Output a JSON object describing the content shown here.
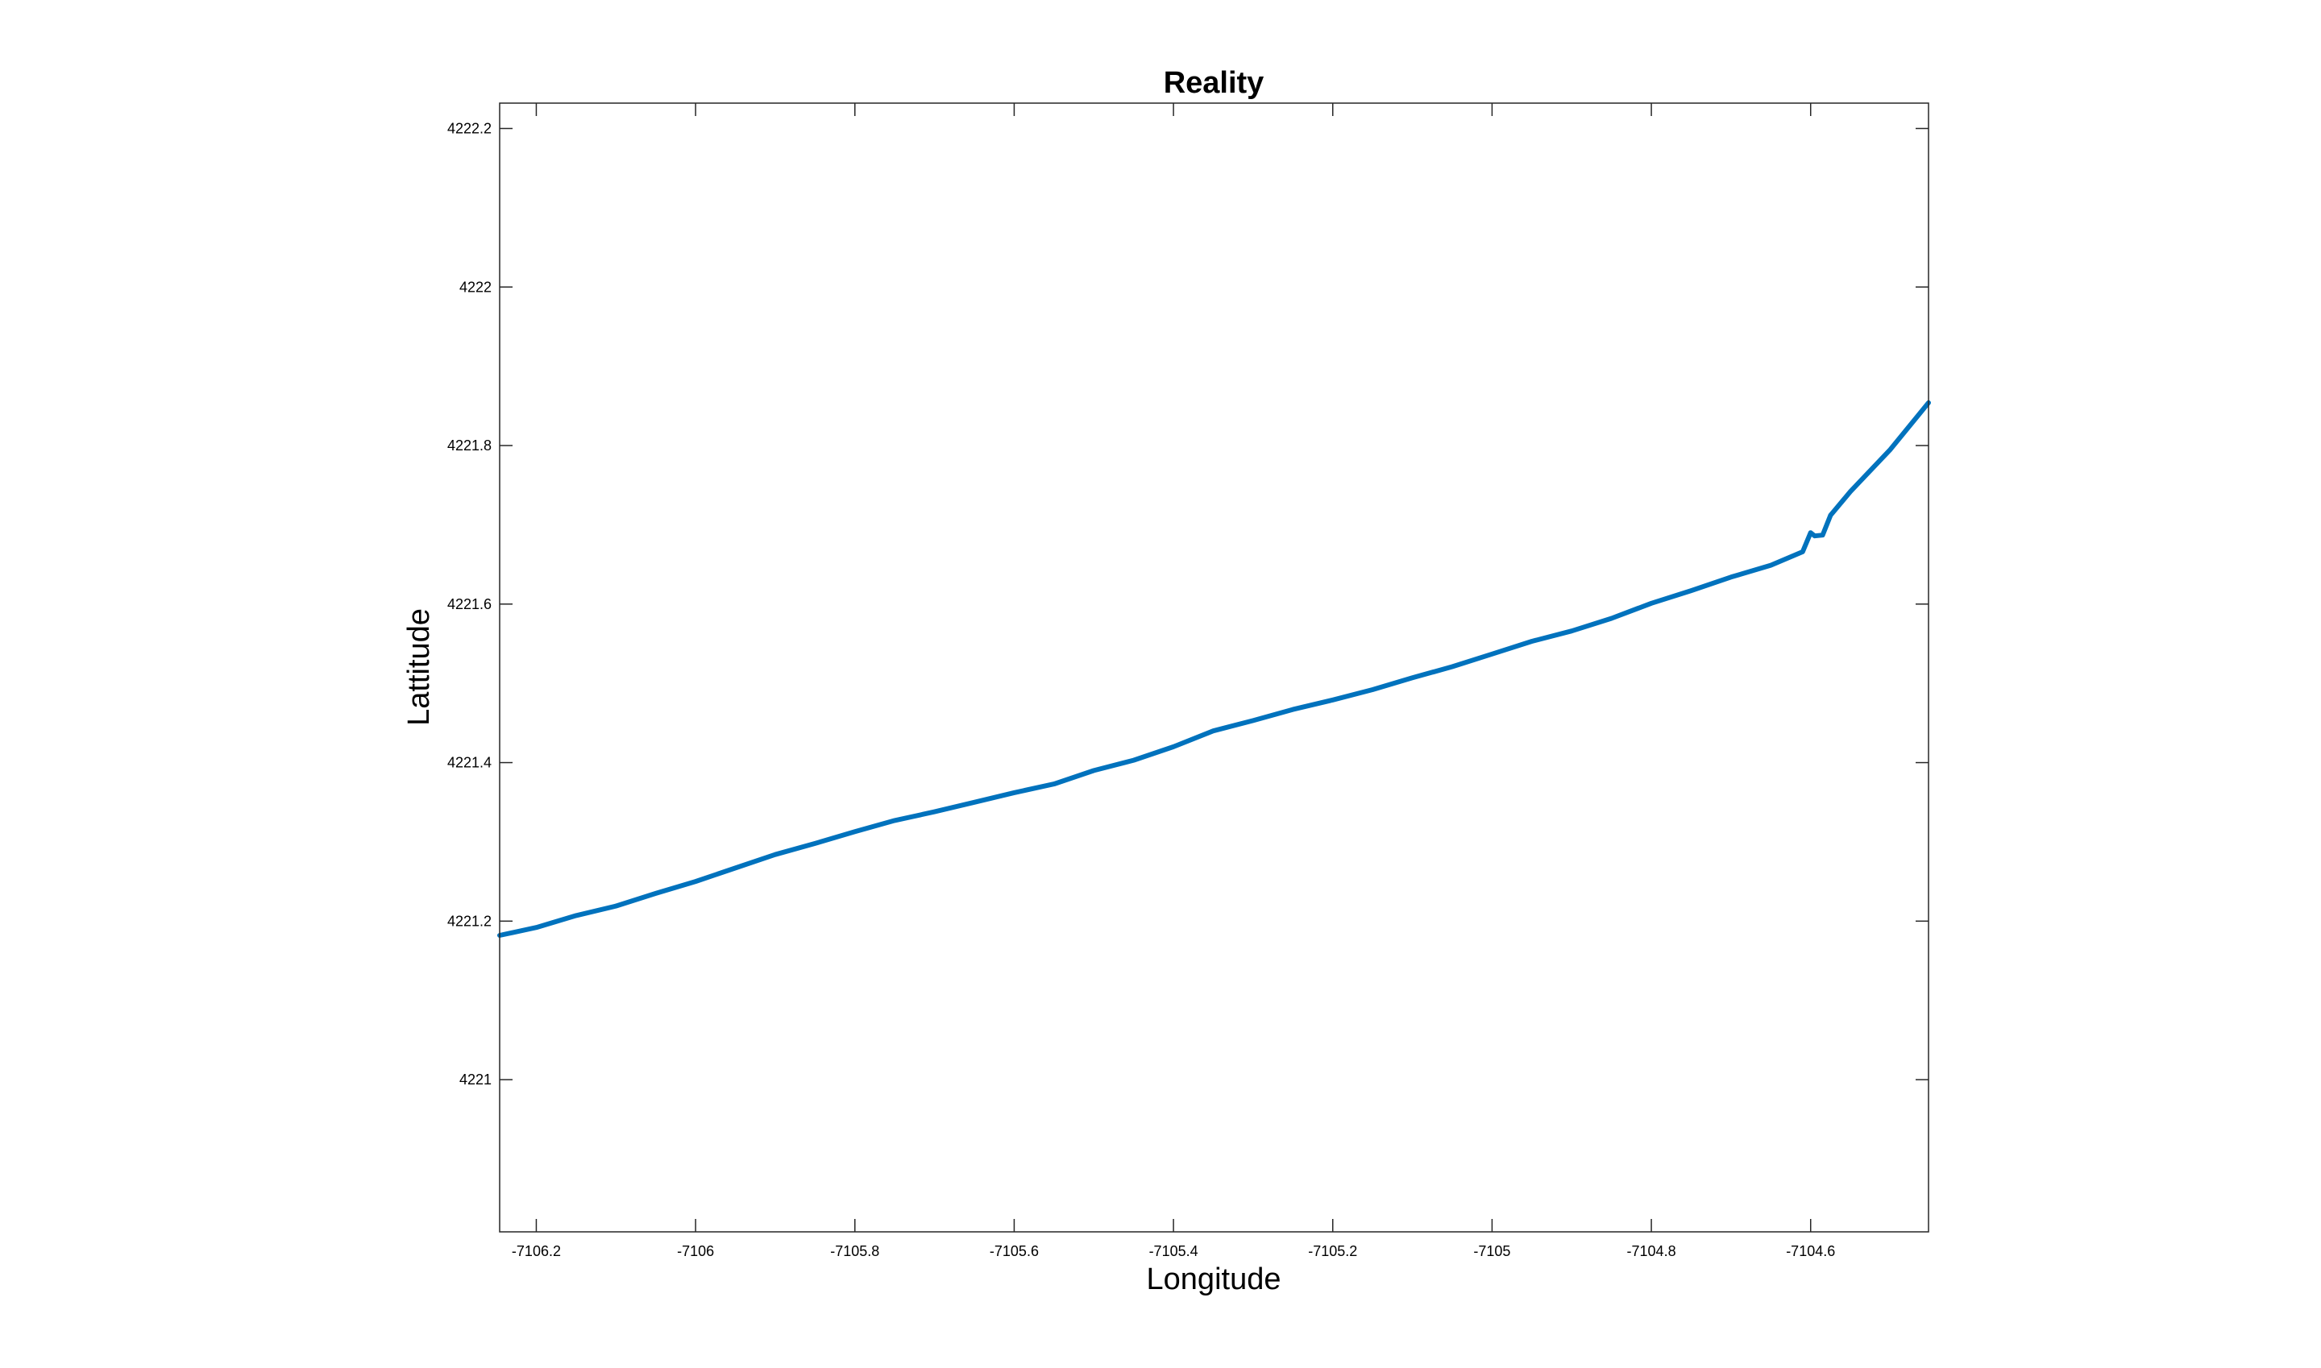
{
  "chart_data": {
    "type": "line",
    "title": "Reality",
    "xlabel": "Longitude",
    "ylabel": "Lattitude",
    "xlim": [
      -7106.246,
      -7104.452
    ],
    "ylim": [
      4220.808,
      4222.232
    ],
    "xticks": [
      -7106.2,
      -7106.0,
      -7105.8,
      -7105.6,
      -7105.4,
      -7105.2,
      -7105.0,
      -7104.8,
      -7104.6
    ],
    "xtick_labels": [
      "-7106.2",
      "-7106",
      "-7105.8",
      "-7105.6",
      "-7105.4",
      "-7105.2",
      "-7105",
      "-7104.8",
      "-7104.6"
    ],
    "yticks": [
      4221.0,
      4221.2,
      4221.4,
      4221.6,
      4221.8,
      4222.0,
      4222.2
    ],
    "ytick_labels": [
      "4221",
      "4221.2",
      "4221.4",
      "4221.6",
      "4221.8",
      "4222",
      "4222.2"
    ],
    "grid": false,
    "box": true,
    "series": [
      {
        "color": "#0072BD",
        "x": [
          -7106.246,
          -7106.2,
          -7106.15,
          -7106.1,
          -7106.05,
          -7106.0,
          -7105.95,
          -7105.9,
          -7105.85,
          -7105.8,
          -7105.75,
          -7105.7,
          -7105.65,
          -7105.6,
          -7105.55,
          -7105.5,
          -7105.45,
          -7105.4,
          -7105.35,
          -7105.3,
          -7105.25,
          -7105.2,
          -7105.15,
          -7105.1,
          -7105.05,
          -7105.0,
          -7104.95,
          -7104.9,
          -7104.85,
          -7104.8,
          -7104.75,
          -7104.7,
          -7104.65,
          -7104.61,
          -7104.6,
          -7104.595,
          -7104.585,
          -7104.575,
          -7104.55,
          -7104.5,
          -7104.452
        ],
        "y": [
          4221.182,
          4221.192,
          4221.207,
          4221.219,
          4221.235,
          4221.25,
          4221.267,
          4221.284,
          4221.298,
          4221.313,
          4221.327,
          4221.338,
          4221.35,
          4221.362,
          4221.373,
          4221.39,
          4221.403,
          4221.42,
          4221.44,
          4221.453,
          4221.467,
          4221.479,
          4221.492,
          4221.507,
          4221.521,
          4221.537,
          4221.553,
          4221.566,
          4221.582,
          4221.601,
          4221.617,
          4221.634,
          4221.649,
          4221.666,
          4221.69,
          4221.686,
          4221.687,
          4221.712,
          4221.742,
          4221.795,
          4221.854
        ]
      }
    ]
  }
}
